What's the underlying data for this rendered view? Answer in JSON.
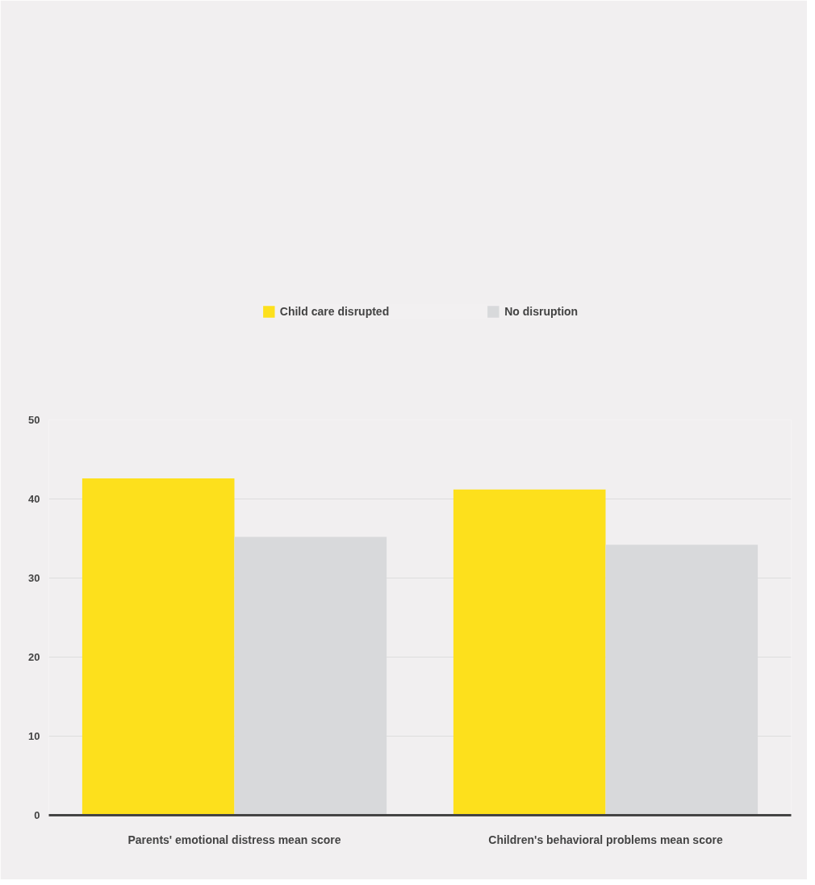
{
  "chart_data": {
    "type": "bar",
    "categories": [
      "Parents' emotional distress mean score",
      "Children's behavioral problems mean score"
    ],
    "series": [
      {
        "name": "Child care disrupted",
        "color": "#fde01c",
        "values": [
          42.6,
          41.2
        ]
      },
      {
        "name": "No disruption",
        "color": "#d8d9db",
        "values": [
          35.2,
          34.2
        ]
      }
    ],
    "ylim": [
      0,
      50
    ],
    "yticks": [
      0,
      10,
      20,
      30,
      40,
      50
    ],
    "grid": "y",
    "legend": "top"
  }
}
